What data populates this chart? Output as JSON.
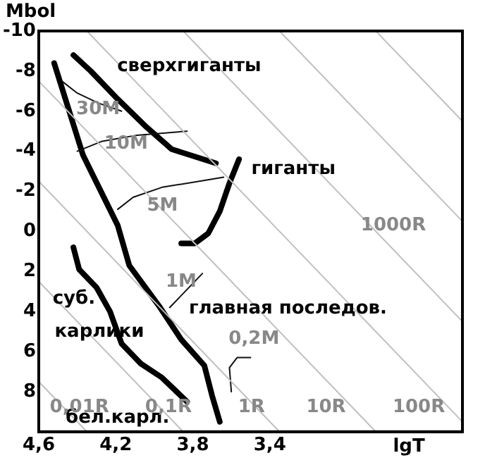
{
  "chart_data": {
    "type": "line",
    "xlabel": "lgT",
    "ylabel": "Mbol",
    "xlim": [
      4.6,
      2.4
    ],
    "xticks": [
      {
        "value": 4.6,
        "label": "4,6"
      },
      {
        "value": 4.2,
        "label": "4,2"
      },
      {
        "value": 3.8,
        "label": "3,8"
      },
      {
        "value": 3.4,
        "label": "3,4"
      }
    ],
    "ylim": [
      10,
      -10
    ],
    "yticks": [
      -10,
      -8,
      -6,
      -4,
      -2,
      0,
      2,
      4,
      6,
      8
    ],
    "grid": false,
    "legend": false,
    "marker": "none",
    "series": [
      {
        "color": "#c0c0c0",
        "x": [
          4.6,
          4.35
        ],
        "values": [
          7.5,
          10
        ]
      },
      {
        "color": "#c0c0c0",
        "x": [
          4.6,
          3.85
        ],
        "values": [
          2.5,
          10
        ]
      },
      {
        "color": "#c0c0c0",
        "x": [
          4.6,
          3.35
        ],
        "values": [
          -2.5,
          10
        ]
      },
      {
        "color": "#c0c0c0",
        "x": [
          4.6,
          2.85
        ],
        "values": [
          -7.5,
          10
        ]
      },
      {
        "color": "#c0c0c0",
        "x": [
          4.35,
          2.4
        ],
        "values": [
          -10,
          9.5
        ]
      },
      {
        "color": "#c0c0c0",
        "x": [
          3.85,
          2.4
        ],
        "values": [
          -10,
          4.5
        ]
      },
      {
        "color": "#c0c0c0",
        "x": [
          3.35,
          2.4
        ],
        "values": [
          -10,
          -0.5
        ]
      },
      {
        "color": "#c0c0c0",
        "x": [
          2.85,
          2.4
        ],
        "values": [
          -10,
          -5.5
        ]
      },
      {
        "color": "#101010",
        "x": [
          4.48,
          4.4,
          4.29,
          4.17
        ],
        "values": [
          -7.5,
          -6.9,
          -6.4,
          -6.0
        ]
      },
      {
        "color": "#101010",
        "x": [
          4.4,
          4.27,
          4.09,
          3.83
        ],
        "values": [
          -4.0,
          -4.5,
          -4.8,
          -5.0
        ]
      },
      {
        "color": "#101010",
        "x": [
          4.19,
          4.11,
          3.96,
          3.64
        ],
        "values": [
          -1.1,
          -1.7,
          -2.2,
          -2.7
        ]
      },
      {
        "color": "#101010",
        "x": [
          3.92,
          3.75
        ],
        "values": [
          3.8,
          2.1
        ]
      },
      {
        "color": "#101010",
        "x": [
          3.6,
          3.61,
          3.57,
          3.5
        ],
        "values": [
          8.0,
          6.8,
          6.3,
          6.3
        ]
      },
      {
        "color": "#000000",
        "x": [
          4.52,
          4.37,
          4.19,
          4.13,
          3.97,
          3.86,
          3.74,
          3.7,
          3.66
        ],
        "values": [
          -8.4,
          -3.8,
          -0.3,
          1.7,
          3.8,
          5.4,
          6.7,
          8.2,
          9.5
        ]
      },
      {
        "color": "#000000",
        "x": [
          4.42,
          4.33,
          4.19,
          4.04,
          3.91,
          3.68
        ],
        "values": [
          -8.8,
          -8.0,
          -6.6,
          -5.2,
          -4.1,
          -3.4
        ]
      },
      {
        "color": "#000000",
        "x": [
          3.56,
          3.61,
          3.66,
          3.72,
          3.79,
          3.86
        ],
        "values": [
          -3.6,
          -2.4,
          -1.0,
          0.1,
          0.6,
          0.6
        ]
      },
      {
        "color": "#000000",
        "x": [
          4.42,
          4.39,
          4.3,
          4.23,
          4.17,
          4.07,
          3.96,
          3.83
        ],
        "values": [
          0.8,
          1.9,
          2.8,
          4.0,
          5.6,
          6.6,
          7.3,
          8.5
        ]
      }
    ],
    "annotations": [
      "сверхгиганты",
      "гиганты",
      "главная последов.",
      "суб.",
      "карлики",
      "бел.карл.",
      "30M",
      "10M",
      "5M",
      "1M",
      "0,2M",
      "0,01R",
      "0,1R",
      "1R",
      "10R",
      "100R",
      "1000R"
    ]
  }
}
